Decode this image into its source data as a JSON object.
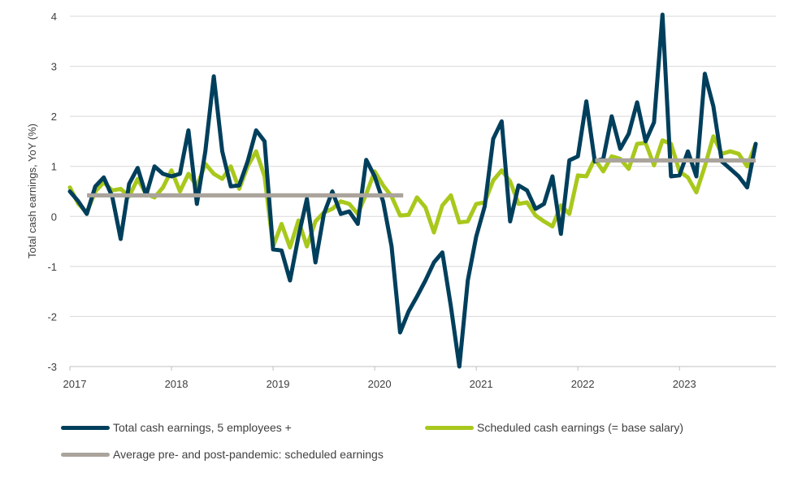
{
  "chart_data": {
    "type": "line",
    "title": "",
    "xlabel": "",
    "ylabel": "Total cash earnings, YoY (%)",
    "xlim": [
      2017,
      2023.95
    ],
    "ylim": [
      -3,
      4
    ],
    "yticks": [
      4,
      3,
      2,
      1,
      0,
      -1,
      -2,
      -3
    ],
    "xticks": [
      "2017",
      "2018",
      "2019",
      "2020",
      "2021",
      "2022",
      "2023"
    ],
    "grid": "horizontal",
    "legend_position": "bottom",
    "series": [
      {
        "name": "Total cash earnings, 5 employees +",
        "color": "#003f5c",
        "start": 2017.0,
        "step": 0.08333,
        "values": [
          0.5,
          0.3,
          0.05,
          0.6,
          0.78,
          0.4,
          -0.45,
          0.65,
          0.97,
          0.42,
          1.0,
          0.85,
          0.8,
          0.85,
          1.72,
          0.25,
          1.3,
          2.8,
          1.3,
          0.6,
          0.62,
          1.1,
          1.72,
          1.5,
          -0.66,
          -0.68,
          -1.28,
          -0.4,
          0.35,
          -0.92,
          0.05,
          0.5,
          0.05,
          0.1,
          -0.15,
          1.13,
          0.8,
          0.3,
          -0.6,
          -2.32,
          -1.9,
          -1.6,
          -1.28,
          -0.92,
          -0.72,
          -1.8,
          -3.0,
          -1.28,
          -0.4,
          0.2,
          1.55,
          1.9,
          -0.1,
          0.62,
          0.52,
          0.15,
          0.25,
          0.8,
          -0.35,
          1.12,
          1.2,
          2.3,
          1.1,
          1.15,
          2.0,
          1.35,
          1.65,
          2.28,
          1.5,
          1.88,
          4.05,
          0.8,
          0.82,
          1.3,
          0.8,
          2.85,
          2.2,
          1.1,
          0.95,
          0.8,
          0.58,
          1.45
        ]
      },
      {
        "name": "Scheduled cash earnings (= base salary)",
        "color": "#a8c81c",
        "start": 2017.0,
        "step": 0.08333,
        "values": [
          0.58,
          0.25,
          0.08,
          0.5,
          0.68,
          0.52,
          0.55,
          0.4,
          0.75,
          0.45,
          0.38,
          0.58,
          0.92,
          0.5,
          0.85,
          0.6,
          1.05,
          0.85,
          0.75,
          1.0,
          0.55,
          1.0,
          1.3,
          0.8,
          -0.6,
          -0.15,
          -0.62,
          -0.08,
          -0.6,
          -0.1,
          0.08,
          0.15,
          0.3,
          0.25,
          0.05,
          0.45,
          0.9,
          0.62,
          0.4,
          0.02,
          0.03,
          0.38,
          0.18,
          -0.32,
          0.22,
          0.42,
          -0.12,
          -0.1,
          0.25,
          0.28,
          0.72,
          0.92,
          0.7,
          0.25,
          0.28,
          0.02,
          -0.1,
          -0.2,
          0.22,
          0.05,
          0.82,
          0.8,
          1.15,
          0.9,
          1.2,
          1.15,
          0.95,
          1.45,
          1.47,
          1.02,
          1.52,
          1.45,
          0.9,
          0.78,
          0.48,
          1.0,
          1.6,
          1.25,
          1.3,
          1.25,
          1.0,
          1.45
        ]
      },
      {
        "name": "Average pre- and post-pandemic: scheduled earnings",
        "color": "#aaa49c",
        "segments": [
          {
            "x_start": 2017.17,
            "x_end": 2020.28,
            "value": 0.42
          },
          {
            "x_start": 2022.17,
            "x_end": 2023.75,
            "value": 1.12
          }
        ]
      }
    ]
  }
}
